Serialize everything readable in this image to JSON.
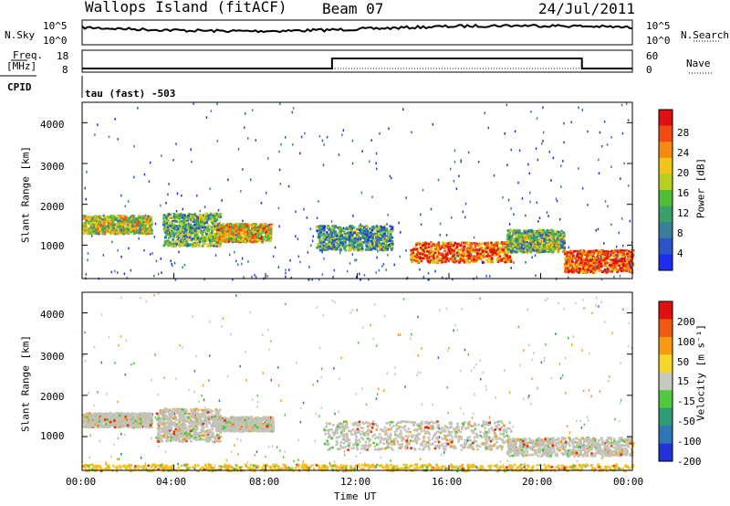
{
  "header": {
    "station": "Wallops Island (fitACF)",
    "beam": "Beam 07",
    "date": "24/Jul/2011"
  },
  "top_panels": {
    "nsky_label": "N.Sky",
    "nsearch_label": "N.Search",
    "freq_label": "Freq.",
    "freq_unit": "[MHz]",
    "nave_label": "Nave",
    "cpid_label": "CPID",
    "nsky_ticks": [
      "10^5",
      "10^0"
    ],
    "nsearch_ticks": [
      "10^5",
      "10^0"
    ],
    "freq_ticks": [
      "18",
      "8"
    ],
    "nave_ticks": [
      "60",
      "0"
    ],
    "cpid_text": "tau (fast) -503"
  },
  "chart_data": [
    {
      "type": "heatmap",
      "name": "power",
      "ylabel": "Slant Range [km]",
      "xlabel": "",
      "ylim": [
        180,
        4500
      ],
      "yticks": [
        "1000",
        "2000",
        "3000",
        "4000"
      ],
      "colorbar_label": "Power [dB]",
      "colorbar_ticks": [
        "4",
        "8",
        "12",
        "16",
        "20",
        "24",
        "28"
      ],
      "colorbar_colors": [
        "#1e2ef0",
        "#2a54c8",
        "#3a7f9a",
        "#3aa06a",
        "#4fbf3a",
        "#b8cf22",
        "#f2c418",
        "#f58a10",
        "#f24a12",
        "#e01010"
      ],
      "bands": [
        {
          "t0": 0.0,
          "t1": 3.0,
          "r0": 1300,
          "r1": 1750,
          "level": 0.55
        },
        {
          "t0": 3.5,
          "t1": 6.0,
          "r0": 1000,
          "r1": 1800,
          "level": 0.4
        },
        {
          "t0": 5.8,
          "t1": 8.2,
          "r0": 1100,
          "r1": 1550,
          "level": 0.65
        },
        {
          "t0": 10.2,
          "t1": 13.5,
          "r0": 900,
          "r1": 1500,
          "level": 0.35
        },
        {
          "t0": 14.3,
          "t1": 18.7,
          "r0": 600,
          "r1": 1100,
          "level": 0.8
        },
        {
          "t0": 18.5,
          "t1": 21.0,
          "r0": 850,
          "r1": 1400,
          "level": 0.45
        },
        {
          "t0": 21.0,
          "t1": 24.0,
          "r0": 350,
          "r1": 900,
          "level": 0.85
        }
      ]
    },
    {
      "type": "heatmap",
      "name": "velocity",
      "ylabel": "Slant Range [km]",
      "xlabel": "Time UT",
      "ylim": [
        180,
        4500
      ],
      "yticks": [
        "1000",
        "2000",
        "3000",
        "4000"
      ],
      "xticks": [
        "00:00",
        "04:00",
        "08:00",
        "12:00",
        "16:00",
        "20:00",
        "00:00"
      ],
      "colorbar_label": "Velocity [m s⁻¹]",
      "colorbar_ticks": [
        "200",
        "100",
        "50",
        "15",
        "-15",
        "-50",
        "-100",
        "-200"
      ],
      "colorbar_colors": [
        "#2232d8",
        "#2f76b8",
        "#2f9a76",
        "#52c83c",
        "#c8c8c0",
        "#f6d628",
        "#f59b12",
        "#f05a12",
        "#e01010"
      ],
      "bands": [
        {
          "t0": 0.0,
          "t1": 3.0,
          "r0": 1250,
          "r1": 1600,
          "color": "#c3c3bb"
        },
        {
          "t0": 3.2,
          "t1": 6.0,
          "r0": 900,
          "r1": 1700,
          "color": "#c3c3bb"
        },
        {
          "t0": 5.8,
          "t1": 8.3,
          "r0": 1150,
          "r1": 1500,
          "color": "#c3c3bb"
        },
        {
          "t0": 10.5,
          "t1": 18.7,
          "r0": 700,
          "r1": 1400,
          "color": "#c3c3bb"
        },
        {
          "t0": 18.5,
          "t1": 24.0,
          "r0": 550,
          "r1": 1000,
          "color": "#c3c3bb"
        },
        {
          "t0": 0.0,
          "t1": 24.0,
          "r0": 190,
          "r1": 350,
          "color": "#f3c020"
        }
      ]
    }
  ]
}
